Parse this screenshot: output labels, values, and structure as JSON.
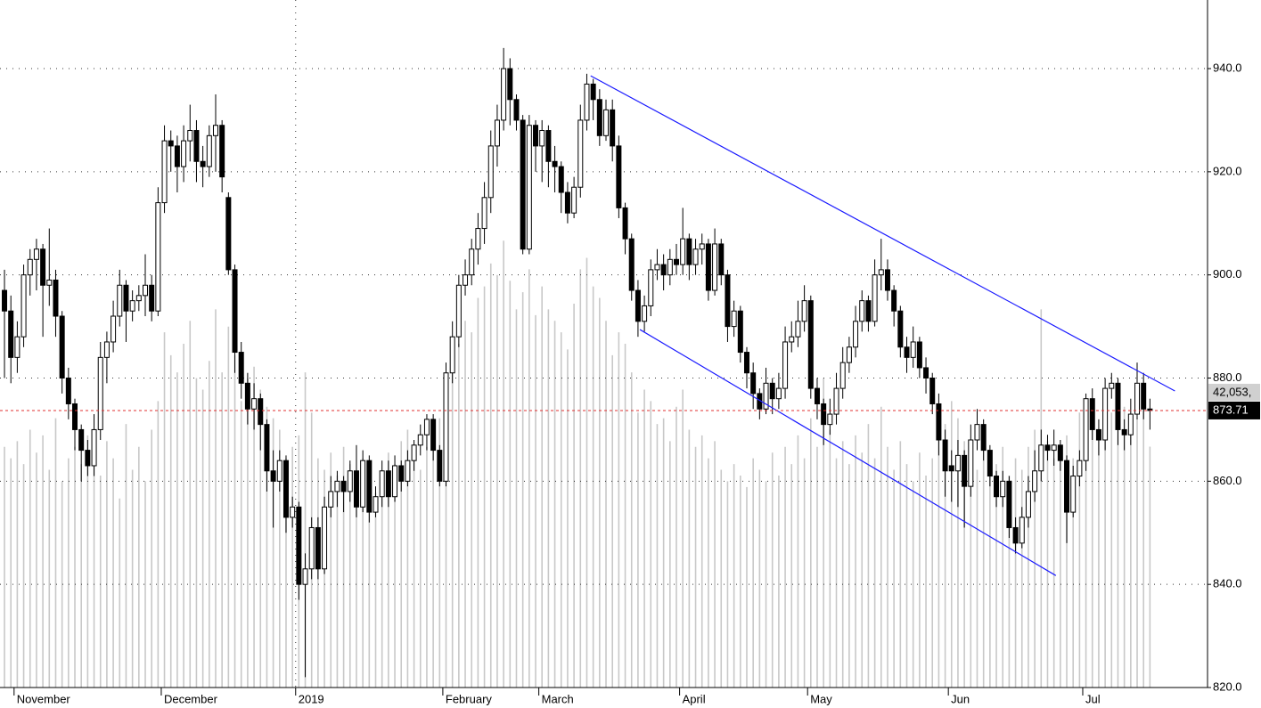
{
  "chart_data": {
    "type": "candlestick",
    "categories": [
      null,
      null,
      "November",
      null,
      null,
      null,
      null,
      null,
      null,
      null,
      null,
      null,
      null,
      null,
      null,
      null,
      null,
      null,
      null,
      null,
      null,
      null,
      null,
      null,
      null,
      "December",
      null,
      null,
      null,
      null,
      null,
      null,
      null,
      null,
      null,
      null,
      null,
      null,
      null,
      null,
      null,
      null,
      null,
      null,
      null,
      null,
      "2019",
      null,
      null,
      null,
      null,
      null,
      null,
      null,
      null,
      null,
      null,
      null,
      null,
      null,
      null,
      null,
      null,
      null,
      null,
      null,
      null,
      null,
      null,
      "February",
      null,
      null,
      null,
      null,
      null,
      null,
      null,
      null,
      null,
      null,
      null,
      null,
      null,
      null,
      "March",
      null,
      null,
      null,
      null,
      null,
      null,
      null,
      null,
      null,
      null,
      null,
      null,
      null,
      null,
      null,
      null,
      null,
      null,
      null,
      null,
      null,
      "April",
      null,
      null,
      null,
      null,
      null,
      null,
      null,
      null,
      null,
      null,
      null,
      null,
      null,
      null,
      null,
      null,
      null,
      null,
      null,
      "May",
      null,
      null,
      null,
      null,
      null,
      null,
      null,
      null,
      null,
      null,
      null,
      null,
      null,
      null,
      null,
      null,
      null,
      null,
      null,
      null,
      null,
      "Jun",
      null,
      null,
      null,
      null,
      null,
      null,
      null,
      null,
      null,
      null,
      null,
      null,
      null,
      null,
      null,
      null,
      null,
      null,
      null,
      null,
      "Jul",
      null,
      null,
      null,
      null,
      null,
      null,
      null,
      null,
      null,
      null
    ],
    "candles": [
      [
        897,
        901,
        880,
        893
      ],
      [
        893,
        896,
        879,
        884
      ],
      [
        884,
        891,
        881,
        888
      ],
      [
        888,
        902,
        886,
        900
      ],
      [
        900,
        905,
        896,
        903
      ],
      [
        903,
        907,
        897,
        905
      ],
      [
        905,
        906,
        888,
        898
      ],
      [
        898,
        909,
        894,
        899
      ],
      [
        899,
        901,
        888,
        892
      ],
      [
        892,
        893,
        877,
        880
      ],
      [
        880,
        882,
        872,
        875
      ],
      [
        875,
        876,
        866,
        870
      ],
      [
        870,
        871,
        860,
        866
      ],
      [
        866,
        868,
        861,
        863
      ],
      [
        863,
        873,
        861,
        870
      ],
      [
        870,
        887,
        868,
        884
      ],
      [
        884,
        889,
        879,
        887
      ],
      [
        887,
        895,
        885,
        892
      ],
      [
        892,
        901,
        890,
        898
      ],
      [
        898,
        899,
        887,
        893
      ],
      [
        893,
        897,
        891,
        895
      ],
      [
        895,
        898,
        893,
        896
      ],
      [
        896,
        904,
        892,
        898
      ],
      [
        898,
        900,
        891,
        893
      ],
      [
        893,
        917,
        892,
        914
      ],
      [
        914,
        929,
        912,
        926
      ],
      [
        926,
        928,
        920,
        925
      ],
      [
        925,
        927,
        916,
        921
      ],
      [
        921,
        929,
        918,
        926
      ],
      [
        926,
        933,
        922,
        928
      ],
      [
        928,
        930,
        918,
        922
      ],
      [
        922,
        925,
        917,
        921
      ],
      [
        921,
        929,
        919,
        927
      ],
      [
        927,
        935,
        920,
        929
      ],
      [
        929,
        930,
        916,
        919
      ],
      [
        915,
        916,
        900,
        901
      ],
      [
        901,
        902,
        881,
        885
      ],
      [
        885,
        887,
        876,
        879
      ],
      [
        879,
        881,
        871,
        874
      ],
      [
        874,
        879,
        870,
        876
      ],
      [
        876,
        877,
        866,
        871
      ],
      [
        871,
        872,
        858,
        862
      ],
      [
        862,
        866,
        851,
        860
      ],
      [
        860,
        866,
        858,
        864
      ],
      [
        864,
        865,
        850,
        853
      ],
      [
        853,
        857,
        851,
        855
      ],
      [
        855,
        856,
        837,
        840
      ],
      [
        840,
        846,
        822,
        843
      ],
      [
        843,
        853,
        841,
        851
      ],
      [
        851,
        853,
        841,
        843
      ],
      [
        843,
        857,
        842,
        855
      ],
      [
        855,
        861,
        853,
        858
      ],
      [
        858,
        862,
        855,
        860
      ],
      [
        860,
        861,
        854,
        858
      ],
      [
        858,
        864,
        856,
        862
      ],
      [
        862,
        867,
        853,
        855
      ],
      [
        855,
        866,
        854,
        864
      ],
      [
        864,
        865,
        852,
        854
      ],
      [
        854,
        859,
        853,
        857
      ],
      [
        857,
        864,
        855,
        862
      ],
      [
        862,
        864,
        855,
        857
      ],
      [
        857,
        865,
        856,
        863
      ],
      [
        863,
        864,
        858,
        860
      ],
      [
        860,
        866,
        859,
        864
      ],
      [
        864,
        868,
        862,
        867
      ],
      [
        867,
        871,
        865,
        869
      ],
      [
        869,
        873,
        866,
        872
      ],
      [
        872,
        873,
        864,
        866
      ],
      [
        866,
        867,
        859,
        860
      ],
      [
        860,
        883,
        859,
        881
      ],
      [
        881,
        891,
        879,
        888
      ],
      [
        888,
        900,
        886,
        898
      ],
      [
        898,
        903,
        896,
        900
      ],
      [
        900,
        907,
        898,
        905
      ],
      [
        905,
        912,
        902,
        909
      ],
      [
        909,
        918,
        906,
        915
      ],
      [
        915,
        928,
        912,
        925
      ],
      [
        925,
        933,
        921,
        930
      ],
      [
        930,
        944,
        928,
        940
      ],
      [
        940,
        942,
        929,
        934
      ],
      [
        934,
        935,
        928,
        930
      ],
      [
        930,
        931,
        904,
        905
      ],
      [
        905,
        931,
        904,
        929
      ],
      [
        929,
        930,
        920,
        925
      ],
      [
        925,
        930,
        918,
        928
      ],
      [
        928,
        929,
        917,
        922
      ],
      [
        922,
        925,
        916,
        921
      ],
      [
        921,
        922,
        912,
        916
      ],
      [
        916,
        918,
        910,
        912
      ],
      [
        912,
        919,
        911,
        917
      ],
      [
        917,
        933,
        915,
        930
      ],
      [
        930,
        939,
        928,
        937
      ],
      [
        937,
        938,
        930,
        934
      ],
      [
        934,
        936,
        925,
        927
      ],
      [
        927,
        934,
        926,
        932
      ],
      [
        932,
        934,
        922,
        925
      ],
      [
        925,
        927,
        911,
        913
      ],
      [
        913,
        914,
        904,
        907
      ],
      [
        907,
        908,
        895,
        897
      ],
      [
        897,
        899,
        888,
        891
      ],
      [
        891,
        896,
        889,
        894
      ],
      [
        894,
        903,
        892,
        901
      ],
      [
        901,
        905,
        899,
        902
      ],
      [
        902,
        904,
        897,
        900
      ],
      [
        900,
        905,
        898,
        903
      ],
      [
        903,
        906,
        900,
        902
      ],
      [
        902,
        913,
        900,
        907
      ],
      [
        907,
        908,
        899,
        902
      ],
      [
        902,
        907,
        900,
        905
      ],
      [
        905,
        908,
        902,
        906
      ],
      [
        906,
        907,
        895,
        897
      ],
      [
        897,
        909,
        896,
        906
      ],
      [
        906,
        907,
        898,
        900
      ],
      [
        900,
        901,
        887,
        890
      ],
      [
        890,
        895,
        888,
        893
      ],
      [
        893,
        894,
        883,
        885
      ],
      [
        885,
        886,
        878,
        881
      ],
      [
        881,
        883,
        874,
        877
      ],
      [
        877,
        878,
        872,
        874
      ],
      [
        874,
        882,
        873,
        879
      ],
      [
        879,
        880,
        873,
        876
      ],
      [
        876,
        881,
        874,
        878
      ],
      [
        878,
        890,
        876,
        887
      ],
      [
        887,
        891,
        885,
        888
      ],
      [
        888,
        895,
        886,
        891
      ],
      [
        891,
        898,
        889,
        895
      ],
      [
        895,
        896,
        876,
        878
      ],
      [
        878,
        880,
        872,
        875
      ],
      [
        875,
        876,
        867,
        871
      ],
      [
        871,
        876,
        869,
        873
      ],
      [
        873,
        881,
        871,
        878
      ],
      [
        878,
        886,
        876,
        883
      ],
      [
        883,
        888,
        881,
        886
      ],
      [
        886,
        894,
        884,
        891
      ],
      [
        891,
        897,
        889,
        895
      ],
      [
        895,
        896,
        889,
        891
      ],
      [
        891,
        903,
        890,
        900
      ],
      [
        900,
        907,
        897,
        901
      ],
      [
        901,
        903,
        895,
        897
      ],
      [
        897,
        898,
        890,
        893
      ],
      [
        893,
        894,
        884,
        886
      ],
      [
        886,
        888,
        881,
        884
      ],
      [
        884,
        890,
        882,
        887
      ],
      [
        887,
        888,
        880,
        882
      ],
      [
        882,
        884,
        877,
        880
      ],
      [
        880,
        881,
        873,
        875
      ],
      [
        875,
        877,
        865,
        868
      ],
      [
        868,
        870,
        857,
        862
      ],
      [
        863,
        866,
        856,
        862
      ],
      [
        862,
        868,
        855,
        865
      ],
      [
        865,
        866,
        851,
        859
      ],
      [
        859,
        871,
        857,
        868
      ],
      [
        868,
        874,
        866,
        871
      ],
      [
        871,
        872,
        864,
        866
      ],
      [
        866,
        867,
        859,
        861
      ],
      [
        861,
        862,
        855,
        857
      ],
      [
        857,
        862,
        855,
        860
      ],
      [
        860,
        861,
        849,
        851
      ],
      [
        851,
        853,
        846,
        848
      ],
      [
        848,
        855,
        847,
        853
      ],
      [
        853,
        861,
        851,
        858
      ],
      [
        858,
        866,
        856,
        862
      ],
      [
        862,
        870,
        860,
        867
      ],
      [
        867,
        869,
        864,
        866
      ],
      [
        866,
        870,
        863,
        867
      ],
      [
        867,
        868,
        862,
        864
      ],
      [
        864,
        865,
        848,
        854
      ],
      [
        854,
        863,
        853,
        861
      ],
      [
        861,
        866,
        859,
        864
      ],
      [
        864,
        877,
        862,
        876
      ],
      [
        876,
        878,
        868,
        870
      ],
      [
        870,
        872,
        865,
        868
      ],
      [
        868,
        880,
        866,
        878
      ],
      [
        878,
        881,
        876,
        879
      ],
      [
        879,
        880,
        867,
        870
      ],
      [
        870,
        872,
        866,
        869
      ],
      [
        869,
        876,
        867,
        873
      ],
      [
        873,
        883,
        872,
        879
      ],
      [
        879,
        881,
        872,
        874
      ],
      [
        874,
        876,
        870,
        873.71
      ]
    ],
    "volume": [
      42000,
      40000,
      43000,
      39000,
      45000,
      41000,
      44000,
      38000,
      47000,
      36000,
      40000,
      42000,
      39000,
      44000,
      41000,
      37000,
      43000,
      40000,
      33000,
      46000,
      38000,
      42000,
      36000,
      45000,
      50000,
      62000,
      58000,
      55000,
      60000,
      64000,
      54000,
      52000,
      57000,
      66000,
      55000,
      63000,
      58000,
      50000,
      54000,
      56000,
      52000,
      49000,
      47000,
      45000,
      40000,
      42000,
      44000,
      55000,
      48000,
      40000,
      38000,
      41000,
      37000,
      42000,
      39000,
      36000,
      40000,
      38000,
      34000,
      37000,
      41000,
      39000,
      43000,
      45000,
      40000,
      38000,
      42000,
      44000,
      47000,
      52000,
      55000,
      60000,
      64000,
      62000,
      68000,
      70000,
      74000,
      72000,
      78000,
      71000,
      66000,
      69000,
      73000,
      65000,
      70000,
      66000,
      64000,
      62000,
      59000,
      67000,
      73000,
      75000,
      70000,
      68000,
      64000,
      58000,
      62000,
      60000,
      55000,
      48000,
      52000,
      50000,
      46000,
      47000,
      43000,
      49000,
      52000,
      45000,
      42000,
      44000,
      40000,
      43000,
      38000,
      36000,
      39000,
      37000,
      35000,
      40000,
      38000,
      36000,
      41000,
      37000,
      42000,
      39000,
      44000,
      40000,
      47000,
      42000,
      54000,
      45000,
      40000,
      43000,
      39000,
      44000,
      41000,
      46000,
      40000,
      49000,
      42000,
      38000,
      43000,
      39000,
      36000,
      41000,
      37000,
      40000,
      44000,
      46000,
      50000,
      47000,
      43000,
      40000,
      38000,
      45000,
      41000,
      39000,
      42000,
      37000,
      40000,
      38000,
      42000,
      45000,
      66000,
      43000,
      40000,
      41000,
      44000,
      40000,
      48000,
      50000,
      46000,
      44000,
      51000,
      48000,
      46000,
      49000,
      45000,
      47000,
      52000,
      42053
    ],
    "volume_label": "42,053,",
    "volume_lim": [
      0,
      120000
    ],
    "xlim": [
      -0.7,
      188
    ],
    "ylim": [
      820,
      953.3
    ],
    "yticks": [
      {
        "value": 820,
        "label": "820.0"
      },
      {
        "value": 840,
        "label": "840.0"
      },
      {
        "value": 860,
        "label": "860.0"
      },
      {
        "value": 880,
        "label": "880.0"
      },
      {
        "value": 900,
        "label": "900.0"
      },
      {
        "value": 920,
        "label": "920.0"
      },
      {
        "value": 940,
        "label": "940.0"
      }
    ],
    "grid": true,
    "up_color": "#ffffff",
    "down_color": "#000000",
    "volume_color": "#c8c8c8",
    "trendline_color": "#1a1aff",
    "last_line_color": "#e03030",
    "trendlines": [
      {
        "x": [
          91.6,
          182.9
        ],
        "y": [
          938.6,
          877.5
        ]
      },
      {
        "x": [
          99.3,
          164.3
        ],
        "y": [
          889.4,
          841.7
        ]
      }
    ]
  }
}
